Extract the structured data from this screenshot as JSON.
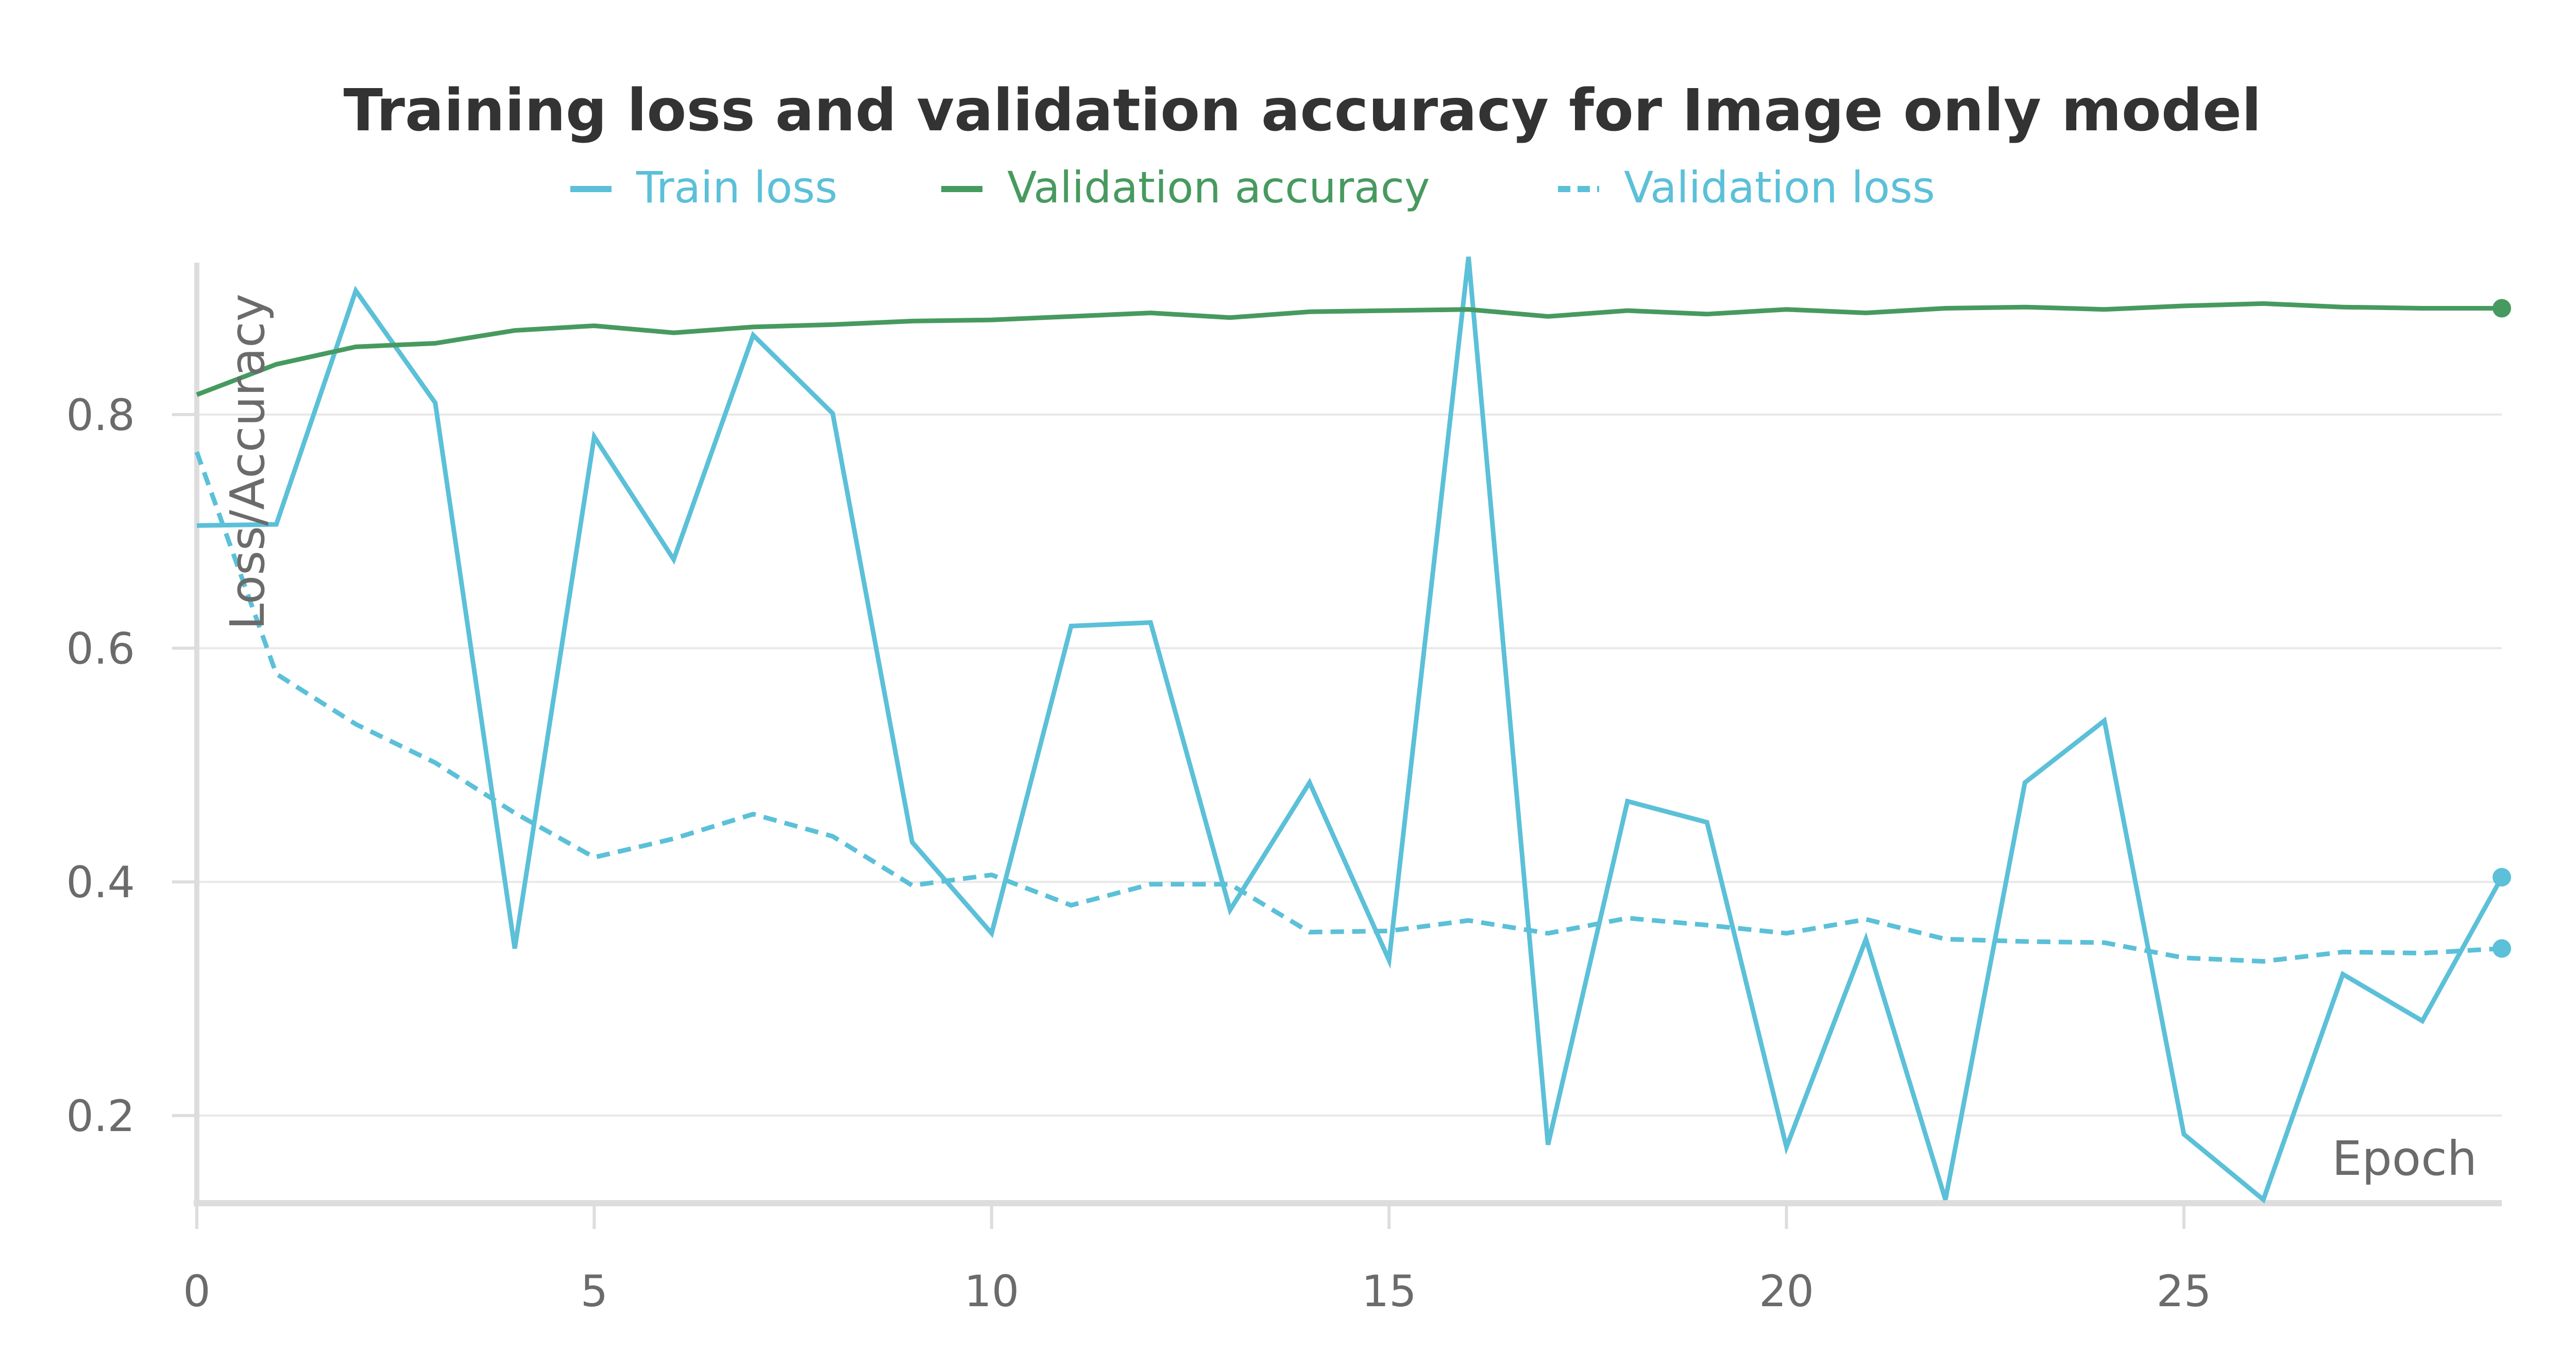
{
  "chart_data": {
    "type": "line",
    "title": "Training loss and validation accuracy for Image only model",
    "xlabel": "Epoch",
    "ylabel": "Loss/Accuracy",
    "xlim": [
      0,
      29
    ],
    "ylim": [
      0.125,
      0.93
    ],
    "x_ticks": [
      "0",
      "5",
      "10",
      "15",
      "20",
      "25"
    ],
    "y_ticks": [
      "0.2",
      "0.4",
      "0.6",
      "0.8"
    ],
    "grid": true,
    "legend_position": "top-center",
    "x": [
      0,
      1,
      2,
      3,
      4,
      5,
      6,
      7,
      8,
      9,
      10,
      11,
      12,
      13,
      14,
      15,
      16,
      17,
      18,
      19,
      20,
      21,
      22,
      23,
      24,
      25,
      26,
      27,
      28,
      29
    ],
    "series": [
      {
        "name": "Train loss",
        "color": "#5bc0d8",
        "style": "solid",
        "end_marker": true,
        "values": [
          0.705,
          0.706,
          0.906,
          0.81,
          0.343,
          0.781,
          0.676,
          0.868,
          0.801,
          0.434,
          0.356,
          0.619,
          0.622,
          0.376,
          0.485,
          0.333,
          0.935,
          0.175,
          0.469,
          0.451,
          0.173,
          0.351,
          0.128,
          0.485,
          0.538,
          0.184,
          0.128,
          0.321,
          0.281,
          0.404
        ]
      },
      {
        "name": "Validation accuracy",
        "color": "#479a5f",
        "style": "solid",
        "end_marker": true,
        "values": [
          0.817,
          0.843,
          0.858,
          0.861,
          0.872,
          0.876,
          0.87,
          0.875,
          0.877,
          0.88,
          0.881,
          0.884,
          0.887,
          0.883,
          0.888,
          0.889,
          0.89,
          0.884,
          0.889,
          0.886,
          0.89,
          0.887,
          0.891,
          0.892,
          0.89,
          0.893,
          0.895,
          0.892,
          0.891,
          0.891
        ]
      },
      {
        "name": "Validation loss",
        "color": "#5bc0d8",
        "style": "dashed",
        "end_marker": true,
        "values": [
          0.768,
          0.578,
          0.535,
          0.502,
          0.459,
          0.421,
          0.437,
          0.458,
          0.439,
          0.397,
          0.406,
          0.38,
          0.398,
          0.398,
          0.357,
          0.358,
          0.367,
          0.356,
          0.369,
          0.363,
          0.356,
          0.368,
          0.351,
          0.349,
          0.348,
          0.335,
          0.332,
          0.34,
          0.339,
          0.343
        ]
      }
    ]
  }
}
